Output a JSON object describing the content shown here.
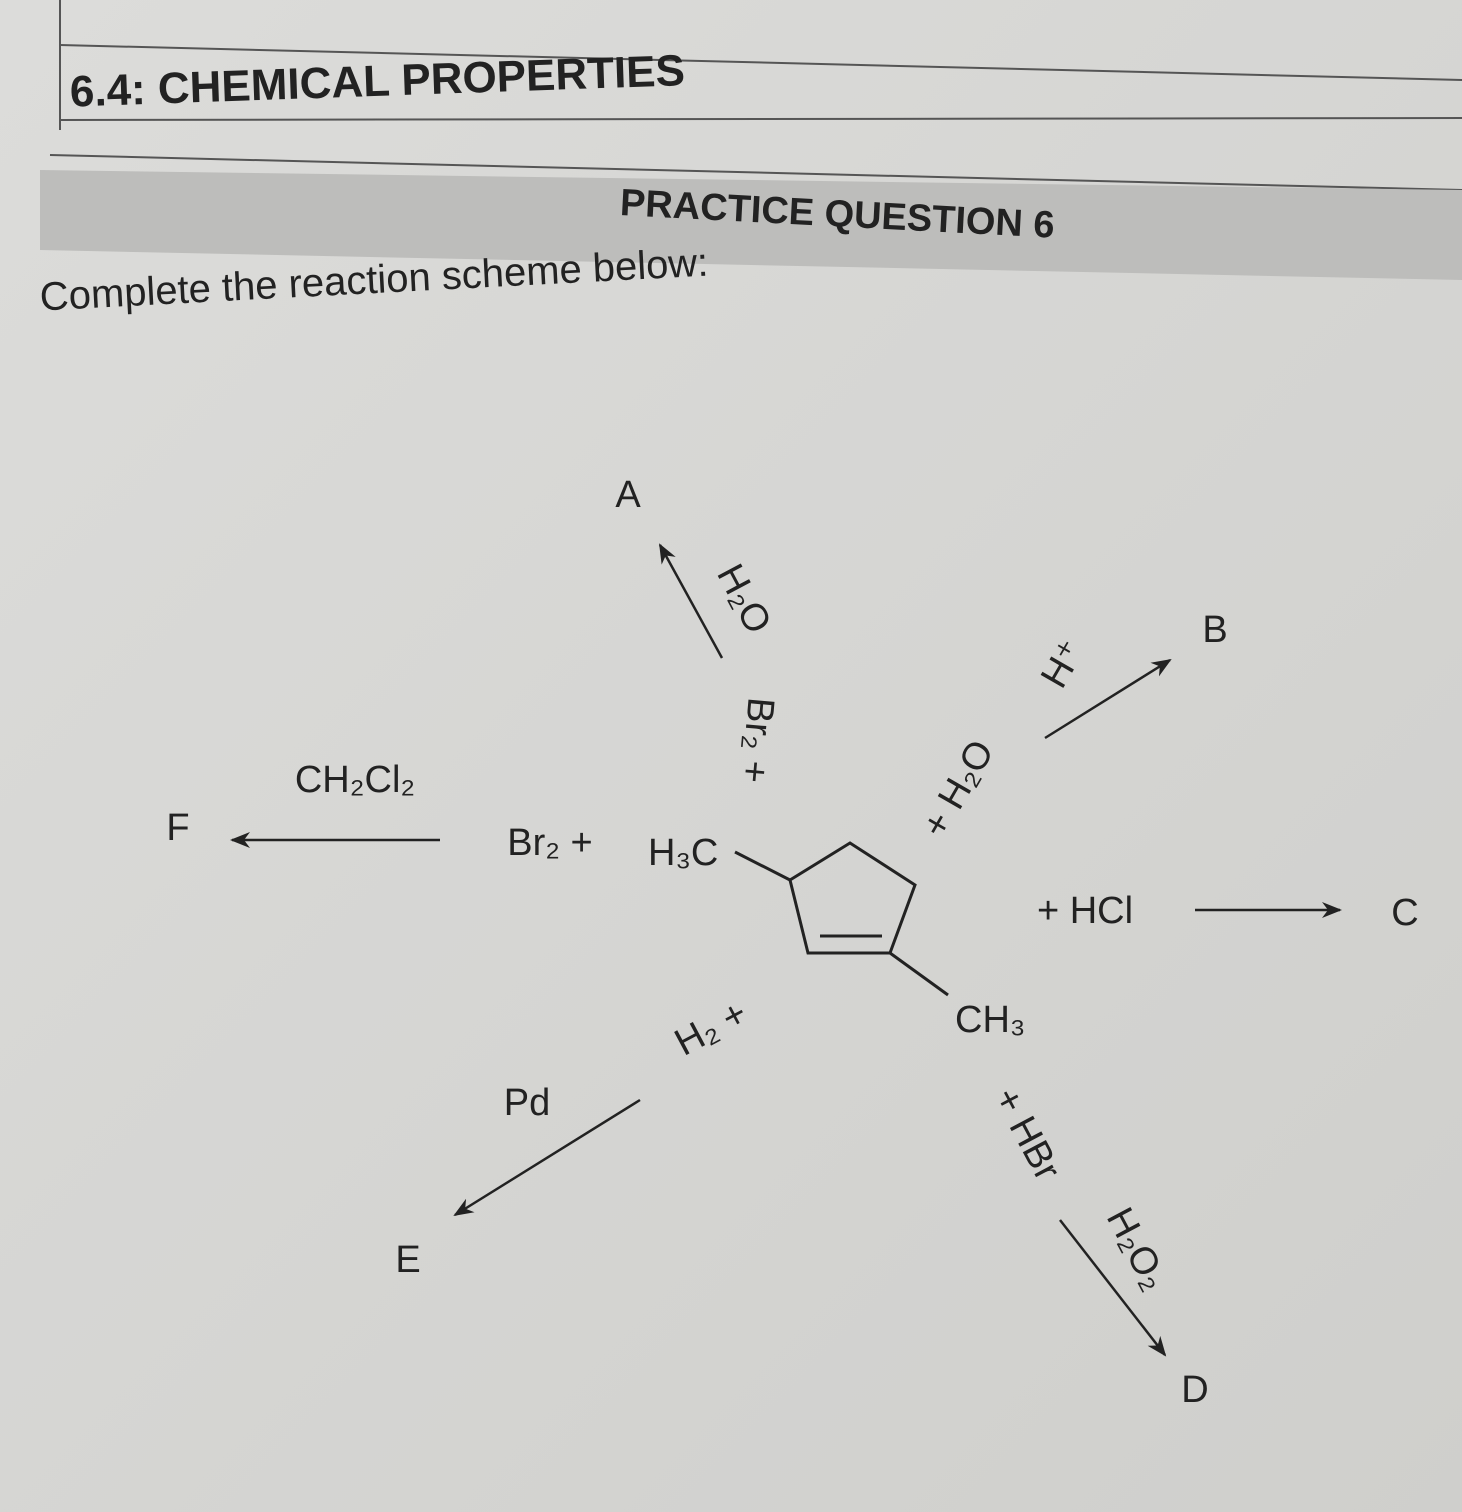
{
  "header": {
    "section": "6.4: CHEMICAL PROPERTIES",
    "question": "PRACTICE QUESTION 6"
  },
  "instruction": "Complete the reaction scheme below:",
  "scheme": {
    "substituents": [
      "H₃C",
      "CH₃"
    ],
    "reactions": [
      {
        "reactant": "Br₂ +",
        "condition": "H₂O",
        "product": "A"
      },
      {
        "reactant": "+ H₂O",
        "condition": "H⁺",
        "product": "B"
      },
      {
        "reactant": "+ HCl",
        "product": "C"
      },
      {
        "reactant": "+ HBr",
        "condition": "H₂O₂",
        "product": "D"
      },
      {
        "reactant": "H₂ +",
        "condition": "Pd",
        "product": "E"
      },
      {
        "reactant": "Br₂ +",
        "condition": "CH₂Cl₂",
        "product": "F"
      }
    ]
  }
}
